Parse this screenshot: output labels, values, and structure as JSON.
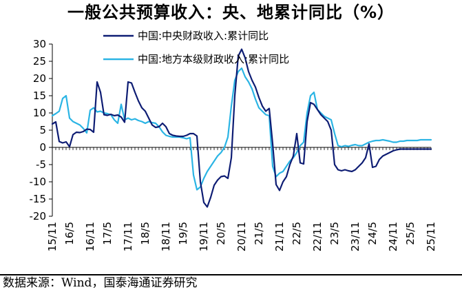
{
  "chart_data": {
    "type": "line",
    "title": "一般公共预算收入：央、地累计同比（%）",
    "xlabel": "",
    "ylabel": "",
    "ylim": [
      -20,
      30
    ],
    "yticks": [
      30,
      25,
      20,
      15,
      10,
      5,
      0,
      -5,
      -10,
      -15,
      -20
    ],
    "x": [
      "15/11",
      "15/12",
      "16/02",
      "16/03",
      "16/04",
      "16/05",
      "16/06",
      "16/07",
      "16/08",
      "16/09",
      "16/10",
      "16/11",
      "16/12",
      "17/02",
      "17/03",
      "17/04",
      "17/05",
      "17/06",
      "17/07",
      "17/08",
      "17/09",
      "17/10",
      "17/11",
      "17/12",
      "18/02",
      "18/03",
      "18/04",
      "18/05",
      "18/06",
      "18/07",
      "18/08",
      "18/09",
      "18/10",
      "18/11",
      "18/12",
      "19/02",
      "19/03",
      "19/04",
      "19/05",
      "19/06",
      "19/07",
      "19/08",
      "19/09",
      "19/10",
      "19/11",
      "19/12",
      "20/02",
      "20/03",
      "20/04",
      "20/05",
      "20/06",
      "20/07",
      "20/08",
      "20/09",
      "20/10",
      "20/11",
      "20/12",
      "21/02",
      "21/03",
      "21/04",
      "21/05",
      "21/06",
      "21/07",
      "21/08",
      "21/09",
      "21/10",
      "21/11",
      "21/12",
      "22/02",
      "22/03",
      "22/04",
      "22/05",
      "22/06",
      "22/07",
      "22/08",
      "22/09",
      "22/10",
      "22/11",
      "22/12",
      "23/02",
      "23/03",
      "23/04",
      "23/05",
      "23/06",
      "23/07",
      "23/08",
      "23/09",
      "23/10",
      "23/11",
      "23/12",
      "24/02",
      "24/03",
      "24/04",
      "24/05",
      "24/06",
      "24/07",
      "24/08",
      "24/09",
      "24/10",
      "24/11",
      "24/12",
      "25/02",
      "25/03",
      "25/04",
      "25/05",
      "25/06",
      "25/07",
      "25/08",
      "25/09",
      "25/10",
      "25/11"
    ],
    "x_tick_labels": [
      "15/11",
      "16/5",
      "16/11",
      "17/5",
      "17/11",
      "18/5",
      "18/11",
      "19/5",
      "19/11",
      "20/5",
      "20/11",
      "21/5",
      "21/11",
      "22/5",
      "22/11",
      "23/5",
      "23/11",
      "24/5",
      "24/11",
      "25/5",
      "25/11"
    ],
    "x_tick_indices": [
      0,
      5,
      11,
      16,
      22,
      27,
      33,
      38,
      44,
      49,
      55,
      60,
      66,
      71,
      77,
      82,
      88,
      93,
      99,
      104,
      110
    ],
    "series": [
      {
        "name": "中国:中央财政收入:累计同比",
        "color": "#0d1c73",
        "values": [
          6.8,
          7.4,
          1.7,
          1.3,
          1.6,
          0.2,
          3.7,
          4.4,
          4.3,
          4.6,
          5.3,
          5.2,
          4.4,
          19.0,
          16.0,
          9.5,
          9.3,
          9.6,
          9.2,
          9.4,
          8.8,
          7.3,
          19.0,
          18.7,
          16.0,
          13.5,
          11.5,
          10.5,
          8.5,
          6.5,
          5.8,
          6.0,
          7.0,
          6.0,
          4.0,
          3.5,
          3.3,
          3.2,
          3.2,
          3.5,
          4.0,
          4.0,
          3.3,
          -10.0,
          -16.0,
          -17.3,
          -14.5,
          -11.0,
          -9.5,
          -8.5,
          -8.3,
          -9.0,
          -3.0,
          15.0,
          26.5,
          28.5,
          26.0,
          22.0,
          19.5,
          17.5,
          14.5,
          12.0,
          10.5,
          11.3,
          1.0,
          -10.8,
          -12.5,
          -10.0,
          -8.5,
          -5.0,
          -2.5,
          4.0,
          -4.5,
          -4.8,
          7.5,
          13.0,
          12.5,
          11.0,
          9.5,
          8.5,
          7.5,
          5.0,
          -5.0,
          -6.5,
          -6.8,
          -6.5,
          -6.8,
          -7.0,
          -6.5,
          -5.5,
          -4.5,
          -3.0,
          1.0,
          -5.8,
          -5.5,
          -3.5,
          -2.5,
          -2.0,
          -1.5,
          -1.0,
          -0.7,
          -0.5,
          -0.5,
          -0.5,
          -0.5,
          -0.5,
          -0.5,
          -0.5,
          -0.5,
          -0.5,
          -0.5
        ]
      },
      {
        "name": "中国:地方本级财政收入:累计同比",
        "color": "#2ab4e4",
        "values": [
          9.2,
          9.8,
          10.5,
          14.2,
          15.0,
          8.5,
          7.5,
          7.0,
          6.5,
          5.5,
          4.2,
          10.8,
          11.5,
          10.3,
          10.5,
          10.0,
          9.8,
          9.5,
          8.0,
          7.0,
          12.5,
          8.0,
          8.5,
          8.0,
          8.3,
          7.8,
          7.5,
          7.0,
          7.5,
          7.2,
          7.0,
          6.0,
          4.5,
          3.5,
          3.2,
          3.0,
          3.0,
          3.0,
          2.8,
          2.5,
          2.8,
          -8.0,
          -12.3,
          -11.5,
          -9.0,
          -7.0,
          -5.5,
          -4.0,
          -2.5,
          -1.5,
          0.0,
          3.0,
          12.0,
          19.5,
          22.0,
          23.0,
          20.5,
          19.0,
          17.0,
          14.0,
          11.5,
          10.5,
          9.5,
          9.2,
          -5.5,
          -8.5,
          -7.5,
          -7.0,
          -5.5,
          -4.0,
          -3.0,
          -1.5,
          0.5,
          1.5,
          10.0,
          15.0,
          16.0,
          11.0,
          10.0,
          9.0,
          8.5,
          8.0,
          4.0,
          0.5,
          0.2,
          0.5,
          0.3,
          0.6,
          0.8,
          0.5,
          0.5,
          1.0,
          1.5,
          1.8,
          2.0,
          2.0,
          2.2,
          2.0,
          1.8,
          1.5,
          1.5,
          1.8,
          1.8,
          2.0,
          2.0,
          2.0,
          2.0,
          2.2,
          2.2,
          2.2,
          2.2
        ]
      }
    ],
    "legend": "top-center",
    "grid": false
  },
  "source_note": "数据来源：Wind，国泰海通证券研究"
}
